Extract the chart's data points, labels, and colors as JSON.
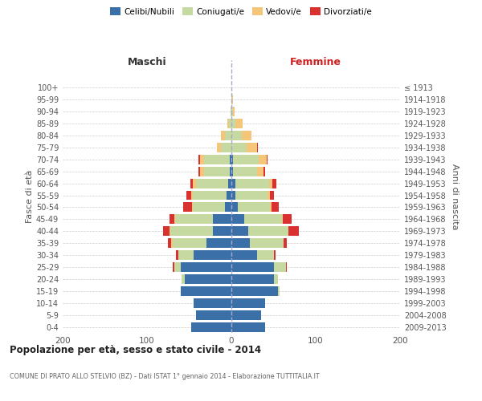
{
  "age_groups": [
    "0-4",
    "5-9",
    "10-14",
    "15-19",
    "20-24",
    "25-29",
    "30-34",
    "35-39",
    "40-44",
    "45-49",
    "50-54",
    "55-59",
    "60-64",
    "65-69",
    "70-74",
    "75-79",
    "80-84",
    "85-89",
    "90-94",
    "95-99",
    "100+"
  ],
  "birth_years": [
    "2009-2013",
    "2004-2008",
    "1999-2003",
    "1994-1998",
    "1989-1993",
    "1984-1988",
    "1979-1983",
    "1974-1978",
    "1969-1973",
    "1964-1968",
    "1959-1963",
    "1954-1958",
    "1949-1953",
    "1944-1948",
    "1939-1943",
    "1934-1938",
    "1929-1933",
    "1924-1928",
    "1919-1923",
    "1914-1918",
    "≤ 1913"
  ],
  "colors": {
    "celibi": "#3a6fa8",
    "coniugati": "#c5d9a0",
    "vedovi": "#f5c57a",
    "divorziati": "#d93030"
  },
  "maschi": {
    "celibi": [
      48,
      42,
      45,
      60,
      55,
      60,
      45,
      30,
      22,
      22,
      8,
      6,
      4,
      2,
      2,
      0,
      0,
      0,
      0,
      0,
      0
    ],
    "coniugati": [
      0,
      0,
      0,
      0,
      4,
      8,
      18,
      40,
      50,
      45,
      38,
      40,
      38,
      30,
      30,
      12,
      8,
      3,
      1,
      0,
      0
    ],
    "vedovi": [
      0,
      0,
      0,
      0,
      0,
      0,
      0,
      1,
      1,
      1,
      1,
      2,
      4,
      5,
      5,
      5,
      4,
      2,
      0,
      0,
      0
    ],
    "divorziati": [
      0,
      0,
      0,
      0,
      0,
      2,
      3,
      4,
      8,
      5,
      10,
      5,
      3,
      2,
      2,
      0,
      0,
      0,
      0,
      0,
      0
    ]
  },
  "femmine": {
    "celibi": [
      40,
      35,
      40,
      55,
      50,
      50,
      30,
      22,
      20,
      15,
      8,
      5,
      5,
      2,
      2,
      0,
      0,
      0,
      0,
      0,
      0
    ],
    "coniugati": [
      0,
      0,
      0,
      2,
      5,
      15,
      20,
      40,
      48,
      45,
      38,
      38,
      40,
      28,
      30,
      18,
      12,
      5,
      2,
      1,
      0
    ],
    "vedovi": [
      0,
      0,
      0,
      0,
      0,
      0,
      0,
      0,
      0,
      1,
      2,
      3,
      4,
      8,
      10,
      12,
      12,
      8,
      2,
      1,
      0
    ],
    "divorziati": [
      0,
      0,
      0,
      0,
      0,
      1,
      2,
      4,
      12,
      10,
      8,
      4,
      4,
      2,
      1,
      1,
      0,
      0,
      0,
      0,
      0
    ]
  },
  "xlim": 200,
  "title": "Popolazione per età, sesso e stato civile - 2014",
  "subtitle": "COMUNE DI PRATO ALLO STELVIO (BZ) - Dati ISTAT 1° gennaio 2014 - Elaborazione TUTTITALIA.IT",
  "ylabel": "Fasce di età",
  "ylabel_right": "Anni di nascita",
  "xlabel_left": "Maschi",
  "xlabel_right": "Femmine",
  "bg_color": "#ffffff",
  "grid_color": "#cccccc"
}
